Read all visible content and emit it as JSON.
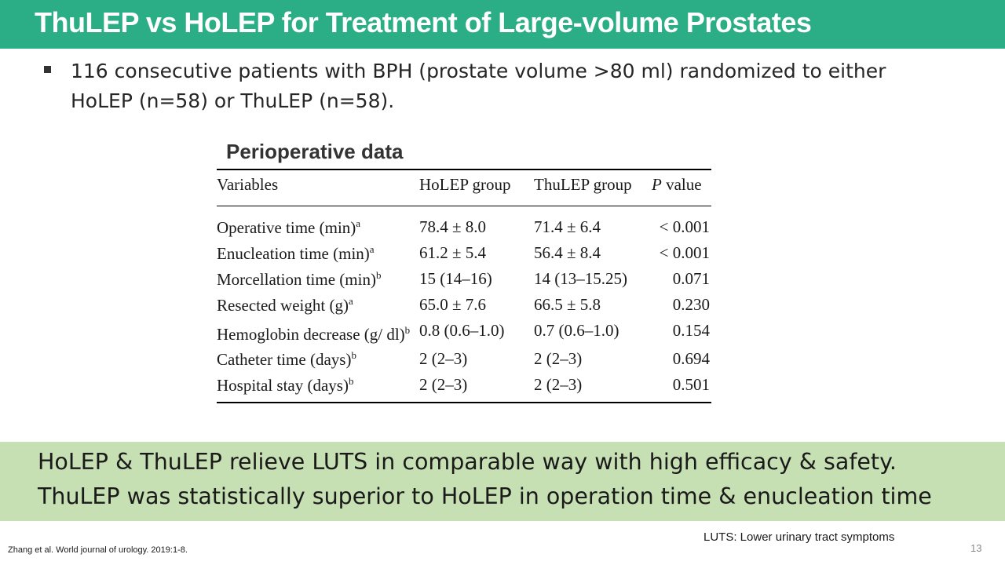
{
  "slide": {
    "title": "ThuLEP vs HoLEP for Treatment of Large-volume Prostates",
    "bullet": "116 consecutive patients with BPH (prostate volume >80 ml) randomized to either HoLEP (n=58) or ThuLEP (n=58).",
    "table_caption": "Perioperative data",
    "table": {
      "headers": {
        "variables": "Variables",
        "holep": "HoLEP group",
        "thulep": "ThuLEP group",
        "p_italic": "P",
        "p_rest": " value"
      },
      "rows": [
        {
          "variable": "Operative time (min)",
          "sup": "a",
          "holep": "78.4 ± 8.0",
          "thulep": "71.4 ± 6.4",
          "p": "< 0.001"
        },
        {
          "variable": "Enucleation time (min)",
          "sup": "a",
          "holep": "61.2 ± 5.4",
          "thulep": "56.4 ± 8.4",
          "p": "< 0.001"
        },
        {
          "variable": "Morcellation time (min)",
          "sup": "b",
          "holep": "15 (14–16)",
          "thulep": "14 (13–15.25)",
          "p": "0.071"
        },
        {
          "variable": "Resected weight (g)",
          "sup": "a",
          "holep": "65.0 ± 7.6",
          "thulep": "66.5 ± 5.8",
          "p": "0.230"
        },
        {
          "variable": "Hemoglobin decrease (g/ dl)",
          "sup": "b",
          "holep": "0.8 (0.6–1.0)",
          "thulep": "0.7 (0.6–1.0)",
          "p": "0.154"
        },
        {
          "variable": "Catheter time (days)",
          "sup": "b",
          "holep": "2 (2–3)",
          "thulep": "2 (2–3)",
          "p": "0.694"
        },
        {
          "variable": "Hospital stay (days)",
          "sup": "b",
          "holep": "2 (2–3)",
          "thulep": "2 (2–3)",
          "p": "0.501"
        }
      ]
    },
    "summary": [
      "HoLEP & ThuLEP relieve LUTS in comparable way with high efficacy & safety.",
      "ThuLEP was statistically superior to HoLEP in operation time & enucleation time"
    ],
    "footnote": "LUTS: Lower urinary tract symptoms",
    "citation": "Zhang et al. World journal of urology. 2019:1-8.",
    "page_number": "13",
    "colors": {
      "title_bar": "#2bae86",
      "summary_box": "#c6e0b3"
    }
  }
}
